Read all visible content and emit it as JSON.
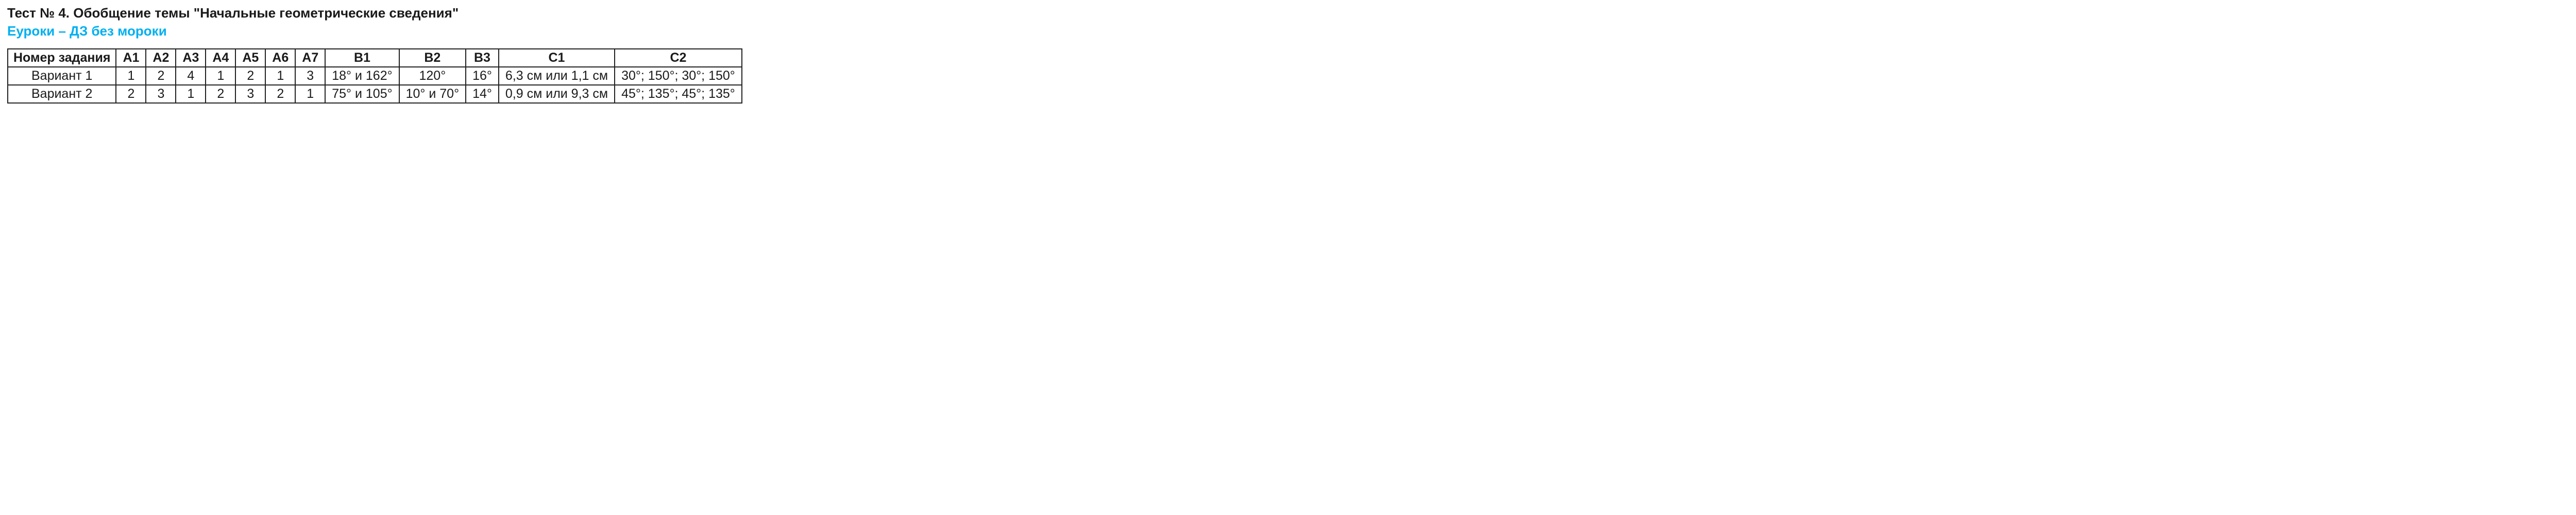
{
  "title": "Тест № 4. Обобщение темы \"Начальные геометрические сведения\"",
  "subtitle": "Еуроки – ДЗ без мороки",
  "subtitle_color": "#00b0f0",
  "table": {
    "row_header": "Номер задания",
    "columns": [
      "А1",
      "А2",
      "А3",
      "А4",
      "А5",
      "А6",
      "А7",
      "В1",
      "В2",
      "В3",
      "С1",
      "С2"
    ],
    "rows": [
      {
        "label": "Вариант 1",
        "cells": [
          "1",
          "2",
          "4",
          "1",
          "2",
          "1",
          "3",
          "18° и 162°",
          "120°",
          "16°",
          "6,3 см или 1,1 см",
          "30°; 150°; 30°; 150°"
        ]
      },
      {
        "label": "Вариант 2",
        "cells": [
          "2",
          "3",
          "1",
          "2",
          "3",
          "2",
          "1",
          "75° и 105°",
          "10° и 70°",
          "14°",
          "0,9 см или 9,3 см",
          "45°; 135°; 45°; 135°"
        ]
      }
    ]
  }
}
